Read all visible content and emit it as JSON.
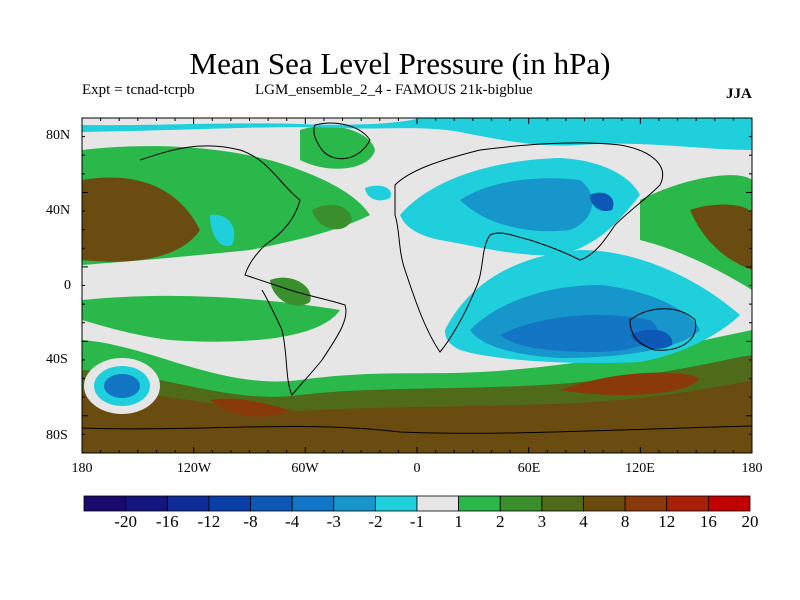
{
  "title": "Mean Sea Level Pressure (in hPa)",
  "experiment": "Expt = tcnad-tcrpb",
  "ensemble": "LGM_ensemble_2_4 - FAMOUS 21k-bigblue",
  "season": "JJA",
  "lat_labels": [
    "80N",
    "40N",
    "0",
    "40S",
    "80S"
  ],
  "lon_labels": [
    "180",
    "120W",
    "60W",
    "0",
    "60E",
    "120E",
    "180"
  ],
  "colorbar": {
    "labels": [
      "-20",
      "-16",
      "-12",
      "-8",
      "-4",
      "-3",
      "-2",
      "-1",
      "1",
      "2",
      "3",
      "4",
      "8",
      "12",
      "16",
      "20"
    ],
    "colors": [
      "#1a0a6e",
      "#14167f",
      "#0f2a99",
      "#0b3fa8",
      "#0d58b6",
      "#1276c4",
      "#1796cc",
      "#1fd0dc",
      "#e6e6e6",
      "#2ab84a",
      "#3a8f2c",
      "#4f6a18",
      "#6b4c10",
      "#8a3a0a",
      "#a8200a",
      "#c20000"
    ]
  }
}
